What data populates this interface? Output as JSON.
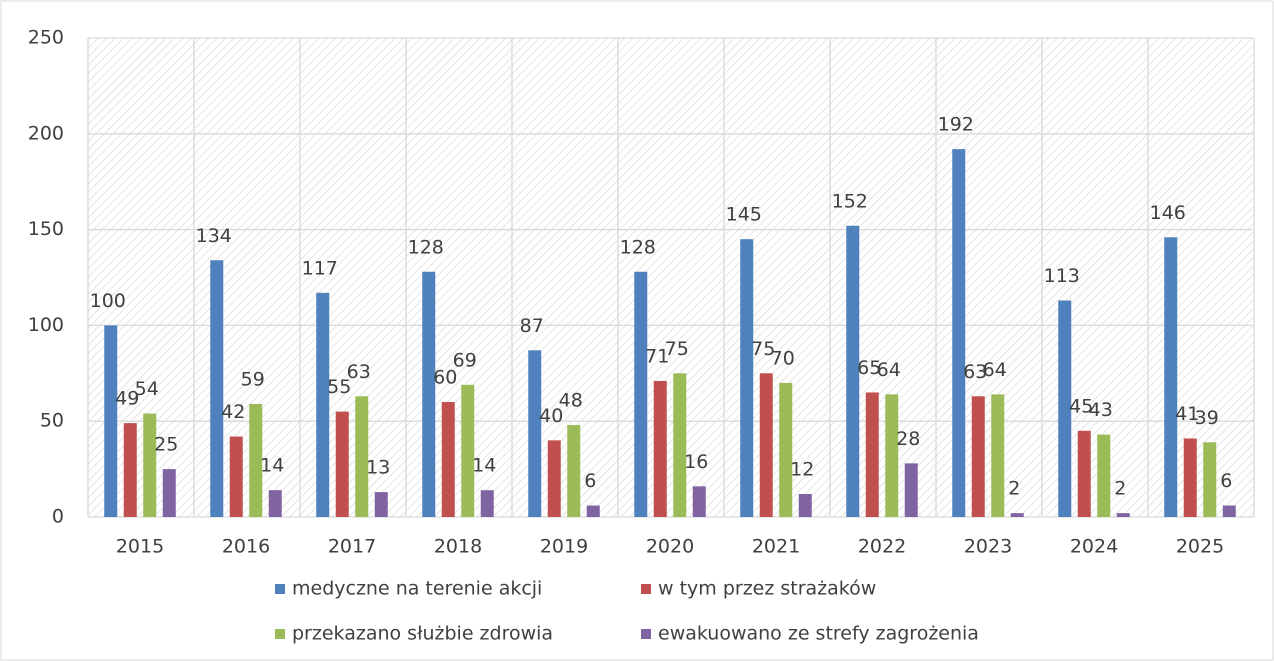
{
  "chart_data": {
    "type": "bar",
    "categories": [
      "2015",
      "2016",
      "2017",
      "2018",
      "2019",
      "2020",
      "2021",
      "2022",
      "2023",
      "2024",
      "2025"
    ],
    "series": [
      {
        "name": "medyczne na terenie akcji",
        "color": "#4f81bd",
        "values": [
          100,
          134,
          117,
          128,
          87,
          128,
          145,
          152,
          192,
          113,
          146
        ]
      },
      {
        "name": "w tym przez strażaków",
        "color": "#c0504d",
        "values": [
          49,
          42,
          55,
          60,
          40,
          71,
          75,
          65,
          63,
          45,
          41
        ]
      },
      {
        "name": "przekazano służbie zdrowia",
        "color": "#9bbb59",
        "values": [
          54,
          59,
          63,
          69,
          48,
          75,
          70,
          64,
          64,
          43,
          39
        ]
      },
      {
        "name": "ewakuowano ze strefy zagrożenia",
        "color": "#8064a2",
        "values": [
          25,
          14,
          13,
          14,
          6,
          16,
          12,
          28,
          2,
          2,
          6
        ]
      }
    ],
    "ylim": [
      0,
      250
    ],
    "yticks": [
      0,
      50,
      100,
      150,
      200,
      250
    ],
    "grid": true,
    "legend": "bottom"
  }
}
